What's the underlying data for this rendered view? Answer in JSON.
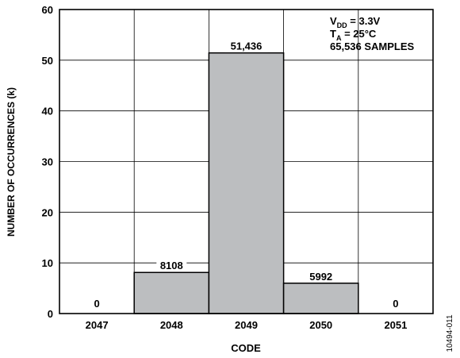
{
  "chart_data": {
    "type": "bar",
    "categories": [
      "2047",
      "2048",
      "2049",
      "2050",
      "2051"
    ],
    "values": [
      0,
      8.108,
      51.436,
      5.992,
      0
    ],
    "data_labels": [
      "0",
      "8108",
      "51,436",
      "5992",
      "0"
    ],
    "xlabel": "CODE",
    "ylabel": "NUMBER OF OCCURRENCES (k)",
    "ylim": [
      0,
      60
    ],
    "yticks": [
      "0",
      "10",
      "20",
      "30",
      "40",
      "50",
      "60"
    ],
    "grid": true,
    "bar_color": "#bcbec0",
    "annotation": {
      "vdd_main": "V",
      "vdd_sub": "DD",
      "vdd_rest": " = 3.3V",
      "ta_main": "T",
      "ta_sub": "A",
      "ta_rest": " = 25°C",
      "samples": "65,536 SAMPLES",
      "placement": "top-right"
    },
    "figure_id": "10494-011"
  }
}
